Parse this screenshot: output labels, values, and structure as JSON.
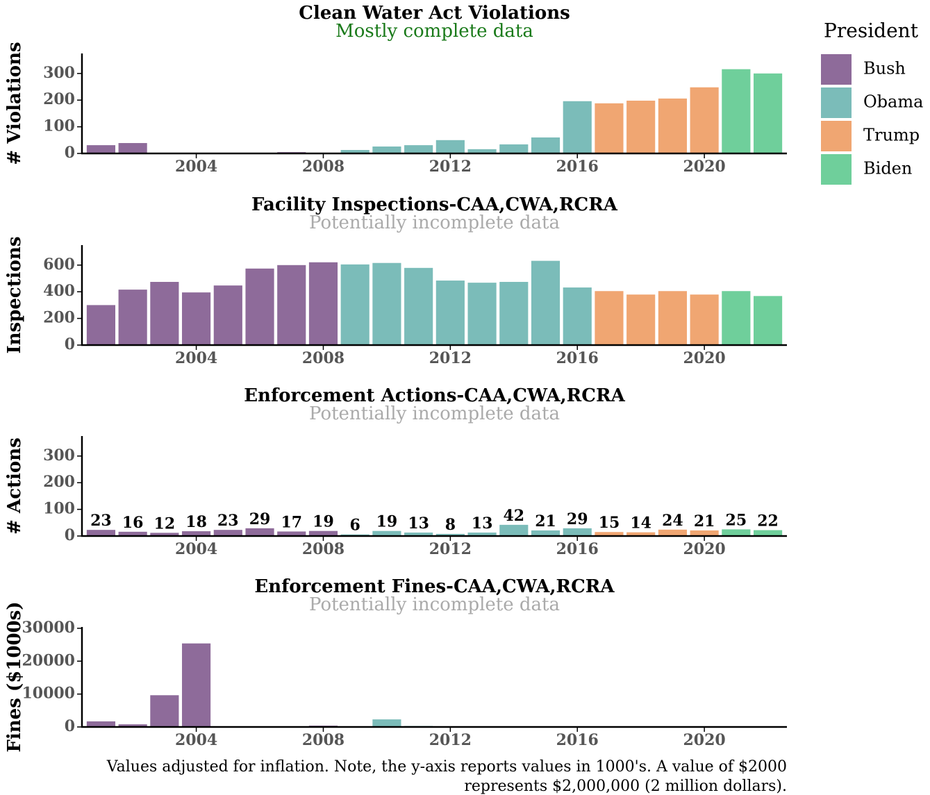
{
  "chart_data": [
    {
      "type": "bar",
      "title": "Clean Water Act Violations",
      "subtitle": "Mostly complete data",
      "subtitle_color": "#1a7a1a",
      "ylabel": "# Violations",
      "series": [
        {
          "name": "Bush",
          "color": "#8e6b9a",
          "x": [
            2001,
            2002,
            2003,
            2004,
            2005,
            2006,
            2007,
            2008
          ],
          "values": [
            31,
            39,
            1,
            1,
            1,
            1,
            5,
            1
          ]
        },
        {
          "name": "Obama",
          "color": "#7bbcb9",
          "x": [
            2009,
            2010,
            2011,
            2012,
            2013,
            2014,
            2015,
            2016
          ],
          "values": [
            13,
            26,
            31,
            50,
            16,
            34,
            60,
            196
          ]
        },
        {
          "name": "Trump",
          "color": "#f0a672",
          "x": [
            2017,
            2018,
            2019,
            2020
          ],
          "values": [
            188,
            198,
            206,
            248
          ]
        },
        {
          "name": "Biden",
          "color": "#6fcf9b",
          "x": [
            2021,
            2022
          ],
          "values": [
            316,
            300
          ]
        }
      ],
      "xlim": [
        2000.4,
        2022.6
      ],
      "xticks": [
        2004,
        2008,
        2012,
        2016,
        2020
      ],
      "ylim": [
        0,
        375
      ],
      "yticks": [
        0,
        100,
        200,
        300
      ]
    },
    {
      "type": "bar",
      "title": "Facility Inspections-CAA,CWA,RCRA",
      "subtitle": "Potentially incomplete data",
      "subtitle_color": "#aaaaaa",
      "ylabel": "Inspections",
      "series": [
        {
          "name": "Bush",
          "color": "#8e6b9a",
          "x": [
            2001,
            2002,
            2003,
            2004,
            2005,
            2006,
            2007,
            2008
          ],
          "values": [
            300,
            416,
            474,
            395,
            447,
            574,
            600,
            621
          ]
        },
        {
          "name": "Obama",
          "color": "#7bbcb9",
          "x": [
            2009,
            2010,
            2011,
            2012,
            2013,
            2014,
            2015,
            2016
          ],
          "values": [
            605,
            616,
            579,
            484,
            468,
            474,
            632,
            432
          ]
        },
        {
          "name": "Trump",
          "color": "#f0a672",
          "x": [
            2017,
            2018,
            2019,
            2020
          ],
          "values": [
            405,
            379,
            405,
            379
          ]
        },
        {
          "name": "Biden",
          "color": "#6fcf9b",
          "x": [
            2021,
            2022
          ],
          "values": [
            405,
            368
          ]
        }
      ],
      "xlim": [
        2000.4,
        2022.6
      ],
      "xticks": [
        2004,
        2008,
        2012,
        2016,
        2020
      ],
      "ylim": [
        0,
        750
      ],
      "yticks": [
        0,
        200,
        400,
        600
      ]
    },
    {
      "type": "bar",
      "title": "Enforcement Actions-CAA,CWA,RCRA",
      "subtitle": "Potentially incomplete data",
      "subtitle_color": "#aaaaaa",
      "ylabel": "# Actions",
      "data_labels": true,
      "series": [
        {
          "name": "Bush",
          "color": "#8e6b9a",
          "x": [
            2001,
            2002,
            2003,
            2004,
            2005,
            2006,
            2007,
            2008
          ],
          "values": [
            23,
            16,
            12,
            18,
            23,
            29,
            17,
            19
          ]
        },
        {
          "name": "Obama",
          "color": "#7bbcb9",
          "x": [
            2009,
            2010,
            2011,
            2012,
            2013,
            2014,
            2015,
            2016
          ],
          "values": [
            6,
            19,
            13,
            8,
            13,
            42,
            21,
            29
          ]
        },
        {
          "name": "Trump",
          "color": "#f0a672",
          "x": [
            2017,
            2018,
            2019,
            2020
          ],
          "values": [
            15,
            14,
            24,
            21
          ]
        },
        {
          "name": "Biden",
          "color": "#6fcf9b",
          "x": [
            2021,
            2022
          ],
          "values": [
            25,
            22
          ]
        }
      ],
      "xlim": [
        2000.4,
        2022.6
      ],
      "xticks": [
        2004,
        2008,
        2012,
        2016,
        2020
      ],
      "ylim": [
        0,
        375
      ],
      "yticks": [
        0,
        100,
        200,
        300
      ]
    },
    {
      "type": "bar",
      "title": "Enforcement Fines-CAA,CWA,RCRA",
      "subtitle": "Potentially incomplete data",
      "subtitle_color": "#aaaaaa",
      "ylabel": "Fines ($1000s)",
      "series": [
        {
          "name": "Bush",
          "color": "#8e6b9a",
          "x": [
            2001,
            2002,
            2003,
            2004,
            2005,
            2006,
            2007,
            2008
          ],
          "values": [
            1700,
            800,
            9650,
            25400,
            0,
            0,
            0,
            400
          ]
        },
        {
          "name": "Obama",
          "color": "#7bbcb9",
          "x": [
            2009,
            2010,
            2011,
            2012,
            2013,
            2014,
            2015,
            2016
          ],
          "values": [
            0,
            2300,
            300,
            0,
            0,
            0,
            0,
            0
          ]
        },
        {
          "name": "Trump",
          "color": "#f0a672",
          "x": [
            2017,
            2018,
            2019,
            2020
          ],
          "values": [
            0,
            0,
            0,
            0
          ]
        },
        {
          "name": "Biden",
          "color": "#6fcf9b",
          "x": [
            2021,
            2022
          ],
          "values": [
            0,
            0
          ]
        }
      ],
      "xlim": [
        2000.4,
        2022.6
      ],
      "xticks": [
        2004,
        2008,
        2012,
        2016,
        2020
      ],
      "ylim": [
        0,
        30400
      ],
      "yticks": [
        0,
        10000,
        20000,
        30000
      ]
    }
  ],
  "legend": {
    "title": "President"
  },
  "footnote": [
    "Values adjusted for inflation. Note, the y-axis reports values in 1000's. A value of $2000",
    "represents $2,000,000 (2 million dollars)."
  ]
}
